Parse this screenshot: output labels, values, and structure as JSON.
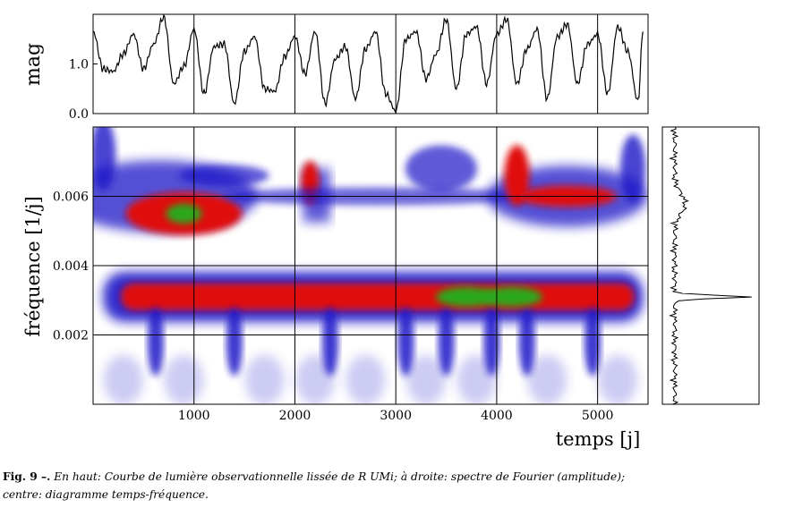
{
  "chart_data": [
    {
      "type": "line",
      "panel": "light-curve",
      "ylabel": "mag",
      "ylim": [
        0.0,
        2.0
      ],
      "yticks": [
        "0.0",
        "1.0"
      ],
      "ytick_values": [
        0.0,
        1.0
      ],
      "xlim": [
        0,
        5500
      ],
      "x": [
        0,
        100,
        200,
        300,
        400,
        500,
        600,
        700,
        800,
        900,
        1000,
        1100,
        1200,
        1300,
        1400,
        1500,
        1600,
        1700,
        1800,
        1900,
        2000,
        2100,
        2200,
        2300,
        2400,
        2500,
        2600,
        2700,
        2800,
        2900,
        3000,
        3100,
        3200,
        3300,
        3400,
        3500,
        3600,
        3700,
        3800,
        3900,
        4000,
        4100,
        4200,
        4300,
        4400,
        4500,
        4600,
        4700,
        4800,
        4900,
        5000,
        5100,
        5200,
        5300,
        5400,
        5450
      ],
      "y": [
        1.65,
        0.9,
        0.85,
        1.2,
        1.6,
        0.9,
        1.4,
        1.95,
        0.6,
        0.95,
        1.7,
        0.4,
        1.35,
        1.4,
        0.2,
        1.25,
        1.55,
        0.5,
        0.45,
        1.15,
        1.55,
        0.8,
        1.65,
        0.2,
        1.1,
        1.35,
        0.3,
        1.3,
        1.65,
        0.4,
        0.05,
        1.5,
        1.65,
        0.7,
        1.2,
        1.9,
        0.5,
        1.6,
        1.75,
        0.6,
        1.6,
        1.9,
        0.6,
        1.3,
        1.7,
        0.3,
        1.55,
        1.8,
        0.6,
        1.4,
        1.6,
        0.4,
        1.75,
        1.25,
        0.25,
        1.65
      ]
    },
    {
      "type": "heatmap",
      "panel": "time-frequency",
      "xlabel": "temps [j]",
      "ylabel": "fréquence [1/j]",
      "xlim": [
        0,
        5500
      ],
      "ylim": [
        0.0,
        0.008
      ],
      "xticks": [
        "1000",
        "2000",
        "3000",
        "4000",
        "5000"
      ],
      "xtick_values": [
        1000,
        2000,
        3000,
        4000,
        5000
      ],
      "yticks": [
        "0.002",
        "0.004",
        "0.006"
      ],
      "ytick_values": [
        0.002,
        0.004,
        0.006
      ],
      "grid": true,
      "colors": {
        "low": "#ffffff",
        "mid": "#1a14c8",
        "high": "#e01010",
        "peak": "#2aa81e"
      },
      "ridges": [
        {
          "freq": 0.0031,
          "t_start": 100,
          "t_end": 5450,
          "peak_time": [
            3700,
            4150
          ],
          "peak_freq": 0.0031
        },
        {
          "freq": 0.0055,
          "t_start": 300,
          "t_end": 1100,
          "peak_time": [
            900
          ],
          "peak_freq": 0.0055
        },
        {
          "freq": 0.006,
          "t_start": 4100,
          "t_end": 5300,
          "peak_time": [],
          "peak_freq": 0.006
        }
      ]
    },
    {
      "type": "line",
      "panel": "fourier-spectrum",
      "orientation": "vertical",
      "ylim": [
        0.0,
        0.008
      ],
      "peak_freq": 0.0031
    }
  ],
  "caption": {
    "label": "Fig. 9 –.",
    "line1": "En haut: Courbe de lumière observationnelle lissée de R UMi; à droite: spectre de Fourier (amplitude);",
    "line2": "centre: diagramme temps-fréquence."
  }
}
